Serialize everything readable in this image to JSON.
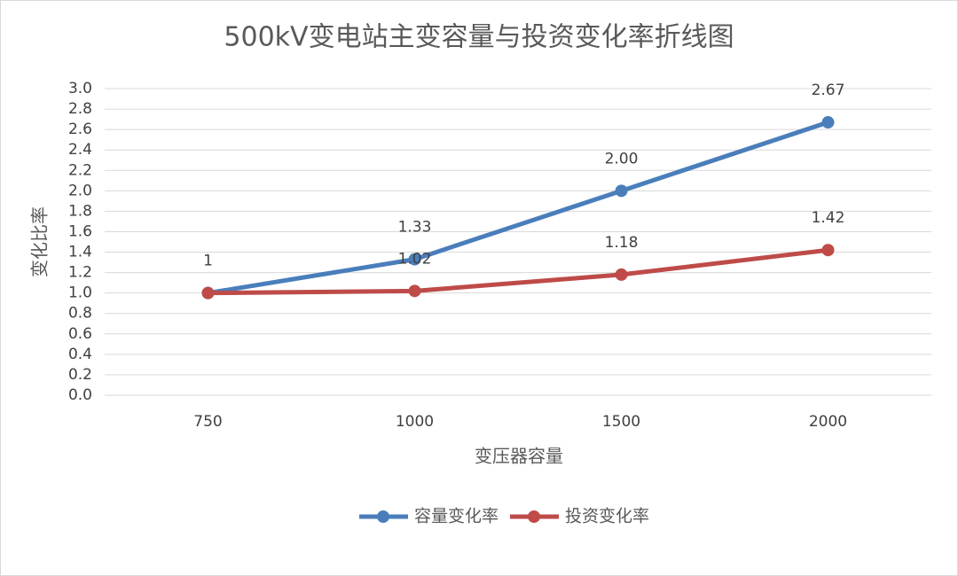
{
  "chart_data": {
    "type": "line",
    "title": "500kV变电站主变容量与投资变化率折线图",
    "x_label": "变压器容量",
    "y_label": "变化比率",
    "categories": [
      "750",
      "1000",
      "1500",
      "2000"
    ],
    "series": [
      {
        "name": "容量变化率",
        "color": "#4a7ebb",
        "values": [
          1,
          1.33,
          2.0,
          2.67
        ],
        "value_labels": [
          "1",
          "1.33",
          "2.00",
          "2.67"
        ]
      },
      {
        "name": "投资变化率",
        "color": "#be4b48",
        "values": [
          1,
          1.02,
          1.18,
          1.42
        ],
        "value_labels": [
          null,
          "1.02",
          "1.18",
          "1.42"
        ]
      }
    ],
    "ylim": [
      0,
      3
    ],
    "yticks": [
      {
        "value": 0,
        "label": "0.0"
      },
      {
        "value": 0.2,
        "label": "0.2"
      },
      {
        "value": 0.4,
        "label": "0.4"
      },
      {
        "value": 0.6,
        "label": "0.6"
      },
      {
        "value": 0.8,
        "label": "0.8"
      },
      {
        "value": 1,
        "label": "1.0"
      },
      {
        "value": 1.2,
        "label": "1.2"
      },
      {
        "value": 1.4,
        "label": "1.4"
      },
      {
        "value": 1.6,
        "label": "1.6"
      },
      {
        "value": 1.8,
        "label": "1.8"
      },
      {
        "value": 2,
        "label": "2.0"
      },
      {
        "value": 2.2,
        "label": "2.2"
      },
      {
        "value": 2.4,
        "label": "2.4"
      },
      {
        "value": 2.6,
        "label": "2.6"
      },
      {
        "value": 2.8,
        "label": "2.8"
      },
      {
        "value": 3,
        "label": "3.0"
      }
    ],
    "grid": true,
    "legend": "bottom"
  }
}
